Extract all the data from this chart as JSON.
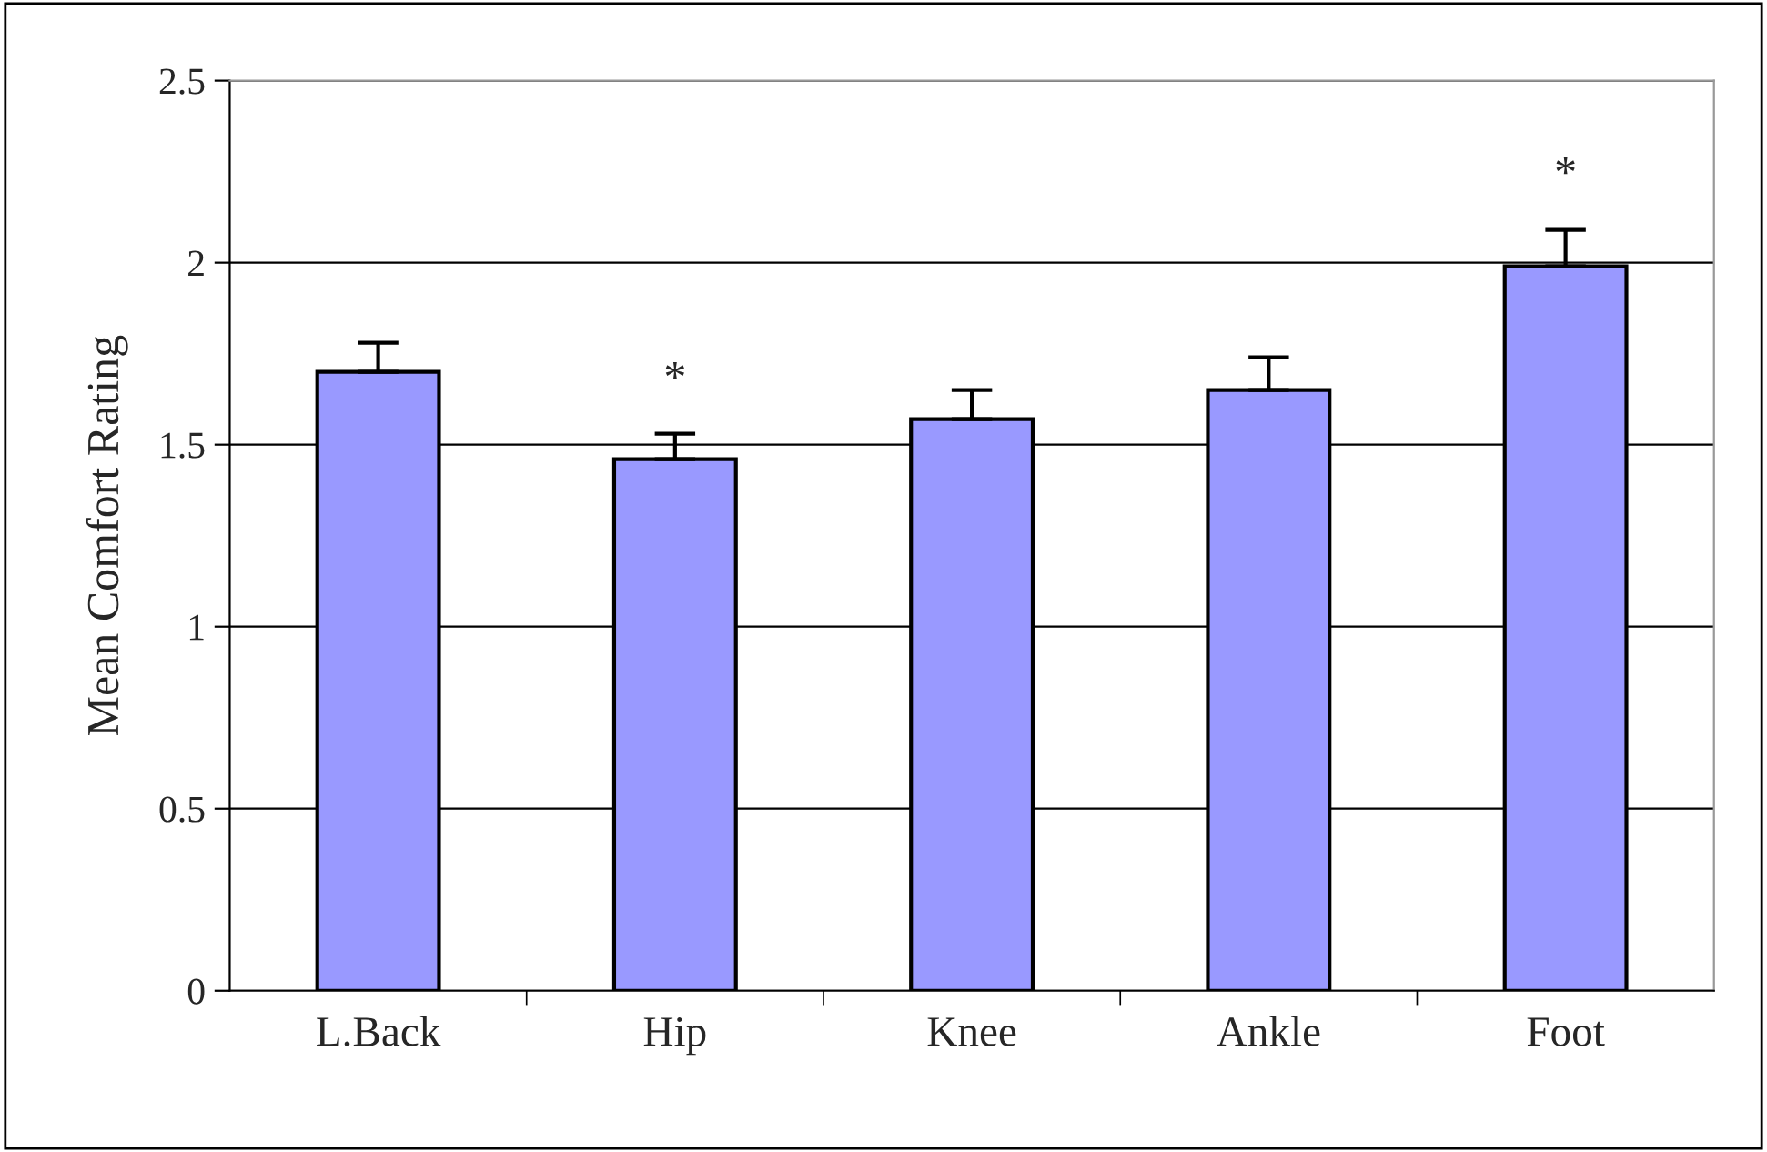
{
  "chart_data": {
    "type": "bar",
    "ylabel": "Mean Comfort Rating",
    "categories": [
      "L.Back",
      "Hip",
      "Knee",
      "Ankle",
      "Foot"
    ],
    "values": [
      1.7,
      1.46,
      1.57,
      1.65,
      1.99
    ],
    "errors": [
      [
        1.7,
        1.78
      ],
      [
        1.46,
        1.53
      ],
      [
        1.57,
        1.65
      ],
      [
        1.65,
        1.74
      ],
      [
        1.99,
        2.09
      ]
    ],
    "color": "#9999ff",
    "ylim": [
      0,
      2.5
    ],
    "yticks": [
      0,
      0.5,
      1,
      1.5,
      2,
      2.5
    ],
    "grid": "y",
    "annotations": [
      "*",
      "*"
    ]
  }
}
